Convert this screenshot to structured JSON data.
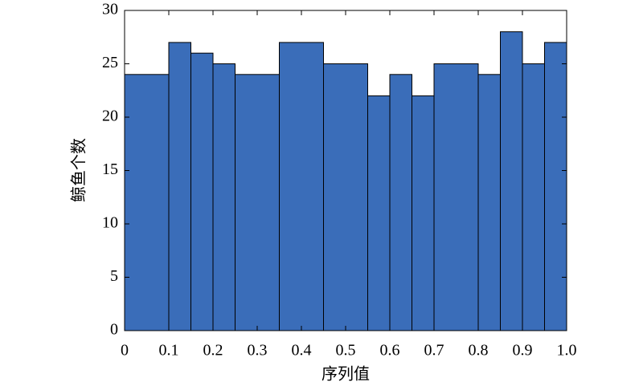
{
  "chart_data": {
    "type": "histogram",
    "xlabel": "序列值",
    "ylabel": "鲸鱼个数",
    "bins": [
      0,
      0.1,
      0.15,
      0.2,
      0.25,
      0.35,
      0.45,
      0.55,
      0.6,
      0.65,
      0.7,
      0.8,
      0.85,
      0.9,
      0.95,
      1.0
    ],
    "values": [
      24,
      27,
      26,
      25,
      24,
      27,
      25,
      22,
      24,
      22,
      25,
      24,
      28,
      25,
      27
    ],
    "color": "#3a6db9",
    "xlim": [
      0,
      1.0
    ],
    "xticks": [
      0,
      0.1,
      0.2,
      0.3,
      0.4,
      0.5,
      0.6,
      0.7,
      0.8,
      0.9,
      {
        "value": 1.0,
        "label": "1.0"
      }
    ],
    "ylim": [
      0,
      30
    ],
    "yticks": [
      0,
      5,
      10,
      15,
      20,
      25,
      30
    ]
  }
}
